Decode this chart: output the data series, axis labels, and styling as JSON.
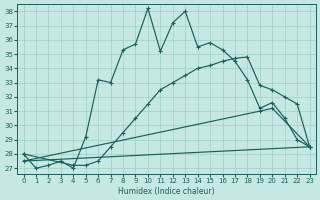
{
  "xlabel": "Humidex (Indice chaleur)",
  "xlim": [
    -0.5,
    23.5
  ],
  "ylim": [
    26.6,
    38.5
  ],
  "xticks": [
    0,
    1,
    2,
    3,
    4,
    5,
    6,
    7,
    8,
    9,
    10,
    11,
    12,
    13,
    14,
    15,
    16,
    17,
    18,
    19,
    20,
    21,
    22,
    23
  ],
  "yticks": [
    27,
    28,
    29,
    30,
    31,
    32,
    33,
    34,
    35,
    36,
    37,
    38
  ],
  "bg_color": "#c5e8e2",
  "line_color": "#1a5f5a",
  "grid_color": "#9ecfc5",
  "curves": [
    {
      "x": [
        0,
        1,
        2,
        3,
        4,
        5,
        6,
        7,
        8,
        9,
        10,
        11,
        12,
        13,
        14,
        15,
        16,
        17,
        18,
        19,
        20,
        21,
        22,
        23
      ],
      "y": [
        28.0,
        27.0,
        27.2,
        27.5,
        27.0,
        29.2,
        33.2,
        33.0,
        35.3,
        35.7,
        38.2,
        35.2,
        37.2,
        38.0,
        35.5,
        35.8,
        35.3,
        34.5,
        33.2,
        31.2,
        31.6,
        30.5,
        29.0,
        28.5
      ],
      "marker": true
    },
    {
      "x": [
        0,
        4,
        5,
        6,
        7,
        8,
        9,
        10,
        11,
        12,
        13,
        14,
        15,
        16,
        17,
        18,
        19,
        20,
        21,
        22,
        23
      ],
      "y": [
        28.0,
        27.2,
        27.2,
        27.5,
        28.5,
        29.5,
        30.5,
        31.5,
        32.5,
        33.0,
        33.5,
        34.0,
        34.2,
        34.5,
        34.7,
        34.8,
        32.8,
        32.5,
        32.0,
        31.5,
        28.5
      ],
      "marker": true
    },
    {
      "x": [
        0,
        19,
        20,
        23
      ],
      "y": [
        27.5,
        31.0,
        31.2,
        28.5
      ],
      "marker": true
    },
    {
      "x": [
        0,
        23
      ],
      "y": [
        27.5,
        28.5
      ],
      "marker": false
    }
  ]
}
